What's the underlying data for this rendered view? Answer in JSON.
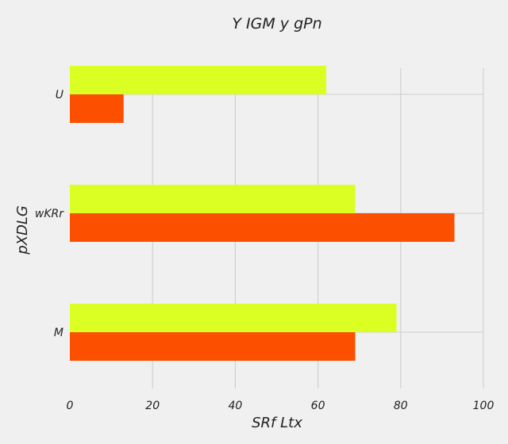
{
  "chart_data": {
    "type": "bar",
    "orientation": "horizontal",
    "title": "Y  IGM y gPn",
    "xlabel": "SRf  Ltx",
    "ylabel": "pXDLG",
    "categories": [
      "M",
      "wKRr",
      "U"
    ],
    "series": [
      {
        "color": "#fc4f00",
        "values": [
          69,
          93,
          13
        ]
      },
      {
        "color": "#dbff22",
        "values": [
          79,
          69,
          62
        ]
      }
    ],
    "xlim": [
      0,
      100
    ],
    "xticks": [
      0,
      20,
      40,
      60,
      80,
      100
    ],
    "grid": true,
    "legend": "none",
    "background": "#f0f0f0"
  }
}
